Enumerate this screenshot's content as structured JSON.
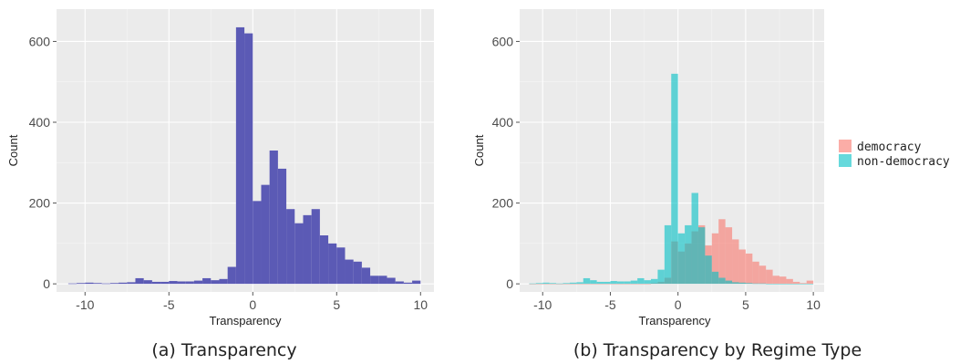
{
  "figure": {
    "colors": {
      "single": "#5b5ab5",
      "democracy": "#f8766d",
      "non_democracy": "#00bfc4",
      "panel": "#ebebeb"
    }
  },
  "chart_data": [
    {
      "type": "bar",
      "caption": "(a) Transparency",
      "xlabel": "Transparency",
      "ylabel": "Count",
      "xlim": [
        -11.7,
        10.8
      ],
      "ylim": [
        -20,
        680
      ],
      "xticks": [
        -10,
        -5,
        0,
        5,
        10
      ],
      "xtick_labels": [
        "-10",
        "-5",
        "0",
        "5",
        "10"
      ],
      "yticks": [
        0,
        200,
        400,
        600
      ],
      "ytick_labels": [
        "0",
        "200",
        "400",
        "600"
      ],
      "grid": true,
      "bin_width": 0.5,
      "bin_starts": [
        -11,
        -10.5,
        -10,
        -9.5,
        -9,
        -8.5,
        -8,
        -7.5,
        -7,
        -6.5,
        -6,
        -5.5,
        -5,
        -4.5,
        -4,
        -3.5,
        -3,
        -2.5,
        -2,
        -1.5,
        -1,
        -0.5,
        0,
        0.5,
        1,
        1.5,
        2,
        2.5,
        3,
        3.5,
        4,
        4.5,
        5,
        5.5,
        6,
        6.5,
        7,
        7.5,
        8,
        8.5,
        9,
        9.5
      ],
      "series": [
        {
          "color_key": "single",
          "values": [
            1,
            2,
            3,
            2,
            1,
            2,
            3,
            4,
            14,
            9,
            5,
            5,
            7,
            6,
            6,
            8,
            14,
            9,
            12,
            42,
            635,
            620,
            205,
            245,
            330,
            285,
            185,
            150,
            170,
            185,
            120,
            100,
            90,
            60,
            55,
            40,
            20,
            20,
            15,
            6,
            3,
            8
          ]
        }
      ]
    },
    {
      "type": "bar",
      "caption": "(b) Transparency by Regime Type",
      "xlabel": "Transparency",
      "ylabel": "Count",
      "xlim": [
        -11.7,
        10.8
      ],
      "ylim": [
        -20,
        680
      ],
      "xticks": [
        -10,
        -5,
        0,
        5,
        10
      ],
      "xtick_labels": [
        "-10",
        "-5",
        "0",
        "5",
        "10"
      ],
      "yticks": [
        0,
        200,
        400,
        600
      ],
      "ytick_labels": [
        "0",
        "200",
        "400",
        "600"
      ],
      "grid": true,
      "legend": {
        "position": "right",
        "entries": [
          "democracy",
          "non-democracy"
        ]
      },
      "bin_width": 0.5,
      "bin_starts": [
        -11,
        -10.5,
        -10,
        -9.5,
        -9,
        -8.5,
        -8,
        -7.5,
        -7,
        -6.5,
        -6,
        -5.5,
        -5,
        -4.5,
        -4,
        -3.5,
        -3,
        -2.5,
        -2,
        -1.5,
        -1,
        -0.5,
        0,
        0.5,
        1,
        1.5,
        2,
        2.5,
        3,
        3.5,
        4,
        4.5,
        5,
        5.5,
        6,
        6.5,
        7,
        7.5,
        8,
        8.5,
        9,
        9.5
      ],
      "series": [
        {
          "name": "democracy",
          "color_key": "democracy",
          "values": [
            0,
            0,
            0,
            0,
            0,
            0,
            0,
            0,
            0,
            0,
            0,
            0,
            0,
            0,
            0,
            0,
            0,
            0,
            2,
            5,
            15,
            105,
            80,
            100,
            130,
            145,
            95,
            125,
            160,
            140,
            110,
            85,
            75,
            55,
            45,
            35,
            20,
            18,
            12,
            5,
            2,
            8
          ]
        },
        {
          "name": "non-democracy",
          "color_key": "non_democracy",
          "values": [
            1,
            2,
            3,
            2,
            1,
            2,
            3,
            4,
            14,
            9,
            5,
            5,
            7,
            6,
            6,
            8,
            14,
            9,
            12,
            35,
            145,
            520,
            125,
            145,
            225,
            140,
            70,
            30,
            15,
            8,
            4,
            3,
            2,
            1,
            1,
            0,
            0,
            0,
            0,
            0,
            0,
            0
          ]
        }
      ]
    }
  ]
}
